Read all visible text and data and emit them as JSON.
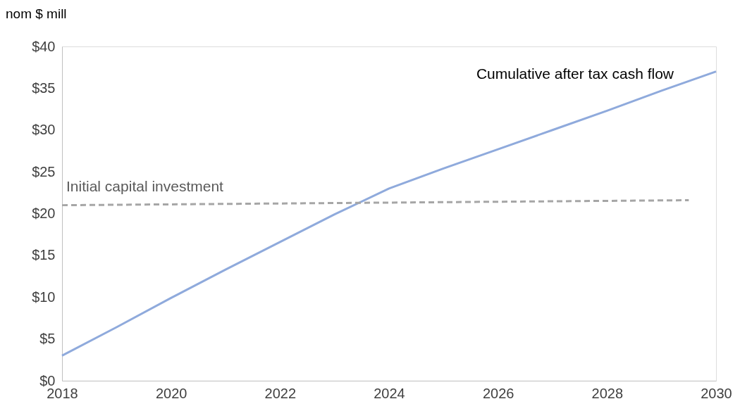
{
  "chart_data": {
    "type": "line",
    "ylabel": "nom $ mill",
    "xlim": [
      2018,
      2030
    ],
    "xticks": [
      2018,
      2020,
      2022,
      2024,
      2026,
      2028,
      2030
    ],
    "ylim": [
      0,
      40
    ],
    "yticks": [
      {
        "value": 0,
        "label": "$0"
      },
      {
        "value": 5,
        "label": "$5"
      },
      {
        "value": 10,
        "label": "$10"
      },
      {
        "value": 15,
        "label": "$15"
      },
      {
        "value": 20,
        "label": "$20"
      },
      {
        "value": 25,
        "label": "$25"
      },
      {
        "value": 30,
        "label": "$30"
      },
      {
        "value": 35,
        "label": "$35"
      },
      {
        "value": 40,
        "label": "$40"
      }
    ],
    "grid": false,
    "marker": "none",
    "series": [
      {
        "name": "Cumulative after tax cash flow",
        "color": "#8faadc",
        "line_style": "solid",
        "x": [
          2018,
          2019,
          2020,
          2021,
          2022,
          2023,
          2024,
          2025,
          2026,
          2027,
          2028,
          2029,
          2030
        ],
        "values": [
          3.0,
          6.4,
          9.9,
          13.3,
          16.6,
          19.9,
          23.0,
          25.4,
          27.7,
          30.0,
          32.3,
          34.7,
          37.0
        ]
      },
      {
        "name": "Initial capital investment",
        "color": "#a6a6a6",
        "line_style": "dashed",
        "x": [
          2018,
          2029.5
        ],
        "values": [
          21.0,
          21.6
        ]
      }
    ]
  }
}
